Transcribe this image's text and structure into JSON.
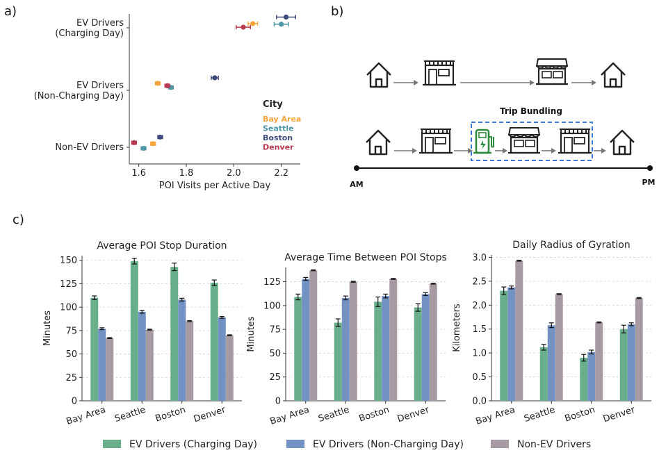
{
  "panel_labels": {
    "a": "a)",
    "b": "b)",
    "c": "c)"
  },
  "colors": {
    "charging": "#6aaf8c",
    "noncharging": "#7392c4",
    "nonev": "#a89aa3",
    "bay_area": "#f5a63a",
    "seattle": "#4e95a5",
    "boston": "#3b4a7a",
    "denver": "#b8384f"
  },
  "diagram": {
    "title": "Trip Bundling",
    "am_label": "AM",
    "pm_label": "PM",
    "icons_row1": [
      "home-icon",
      "store-icon",
      "shop-icon",
      "home-icon"
    ],
    "icons_row2": [
      "home-icon",
      "store-icon",
      "ev-charger-icon",
      "shop-icon",
      "store-icon",
      "home-icon"
    ]
  },
  "legend": [
    {
      "label": "EV Drivers (Charging Day)",
      "color": "#6aaf8c"
    },
    {
      "label": "EV Drivers (Non-Charging Day)",
      "color": "#7392c4"
    },
    {
      "label": "Non-EV Drivers",
      "color": "#a89aa3"
    }
  ],
  "chart_data": [
    {
      "type": "scatter",
      "xlabel": "POI Visits per Active Day",
      "ylabel": "",
      "xlim": [
        1.56,
        2.28
      ],
      "xticks": [
        "1.6",
        "1.8",
        "2.0",
        "2.2"
      ],
      "xtick_values": [
        1.6,
        1.8,
        2.0,
        2.2
      ],
      "categories": [
        "EV Drivers\n(Charging Day)",
        "EV Drivers\n(Non-Charging Day)",
        "Non-EV Drivers"
      ],
      "legend_title": "City",
      "legend_position": "right",
      "series": [
        {
          "name": "Bay Area",
          "color": "#f5a63a",
          "x": [
            2.08,
            1.68,
            1.66
          ],
          "err": [
            0.02,
            0.01,
            0.01
          ],
          "offset": [
            0.0,
            0.0,
            0.06
          ]
        },
        {
          "name": "Seattle",
          "color": "#4e95a5",
          "x": [
            2.2,
            1.735,
            1.62
          ],
          "err": [
            0.03,
            0.01,
            0.01
          ],
          "offset": [
            0.35,
            0.35,
            0.25
          ]
        },
        {
          "name": "Boston",
          "color": "#3b4a7a",
          "x": [
            2.22,
            1.92,
            1.69
          ],
          "err": [
            0.04,
            0.015,
            0.01
          ],
          "offset": [
            -0.1,
            0.0,
            -0.05
          ]
        },
        {
          "name": "Denver",
          "color": "#b8384f",
          "x": [
            2.04,
            1.72,
            1.58
          ],
          "err": [
            0.03,
            0.01,
            0.01
          ],
          "offset": [
            0.15,
            0.1,
            0.1
          ]
        }
      ]
    },
    {
      "type": "bar",
      "title": "Average POI Stop Duration",
      "ylabel": "Minutes",
      "ylim": [
        0,
        155
      ],
      "yticks": [
        0,
        25,
        50,
        75,
        100,
        125,
        150
      ],
      "categories": [
        "Bay Area",
        "Seattle",
        "Boston",
        "Denver"
      ],
      "series": [
        {
          "name": "EV Drivers (Charging Day)",
          "values": [
            110,
            149,
            143,
            126
          ],
          "err": [
            2,
            3,
            4,
            3
          ]
        },
        {
          "name": "EV Drivers (Non-Charging Day)",
          "values": [
            77,
            95,
            108,
            89
          ],
          "err": [
            1,
            1.5,
            1.5,
            1
          ]
        },
        {
          "name": "Non-EV Drivers",
          "values": [
            67,
            76,
            85,
            70
          ],
          "err": [
            0.5,
            0.5,
            0.5,
            0.5
          ]
        }
      ]
    },
    {
      "type": "bar",
      "title": "Average Time Between POI Stops",
      "ylabel": "Minutes",
      "ylim": [
        0,
        140
      ],
      "yticks": [
        0,
        25,
        50,
        75,
        100,
        125
      ],
      "categories": [
        "Bay Area",
        "Seattle",
        "Boston",
        "Denver"
      ],
      "series": [
        {
          "name": "EV Drivers (Charging Day)",
          "values": [
            109,
            82,
            104,
            98
          ],
          "err": [
            3,
            4,
            5,
            4
          ]
        },
        {
          "name": "EV Drivers (Non-Charging Day)",
          "values": [
            128,
            108,
            110,
            112
          ],
          "err": [
            1.5,
            2,
            2,
            1.5
          ]
        },
        {
          "name": "Non-EV Drivers",
          "values": [
            137,
            125,
            128,
            123
          ],
          "err": [
            0.5,
            0.5,
            0.5,
            0.5
          ]
        }
      ]
    },
    {
      "type": "bar",
      "title": "Daily Radius of Gyration",
      "ylabel": "Kilometers",
      "ylim": [
        0,
        3.05
      ],
      "yticks": [
        "0.0",
        "0.5",
        "1.0",
        "1.5",
        "2.0",
        "2.5",
        "3.0"
      ],
      "ytick_values": [
        0,
        0.5,
        1.0,
        1.5,
        2.0,
        2.5,
        3.0
      ],
      "categories": [
        "Bay Area",
        "Seattle",
        "Boston",
        "Denver"
      ],
      "series": [
        {
          "name": "EV Drivers (Charging Day)",
          "values": [
            2.3,
            1.12,
            0.9,
            1.5
          ],
          "err": [
            0.08,
            0.06,
            0.07,
            0.08
          ]
        },
        {
          "name": "EV Drivers (Non-Charging Day)",
          "values": [
            2.37,
            1.58,
            1.02,
            1.6
          ],
          "err": [
            0.03,
            0.05,
            0.04,
            0.03
          ]
        },
        {
          "name": "Non-EV Drivers",
          "values": [
            2.93,
            2.23,
            1.64,
            2.15
          ],
          "err": [
            0.01,
            0.01,
            0.01,
            0.01
          ]
        }
      ]
    }
  ]
}
